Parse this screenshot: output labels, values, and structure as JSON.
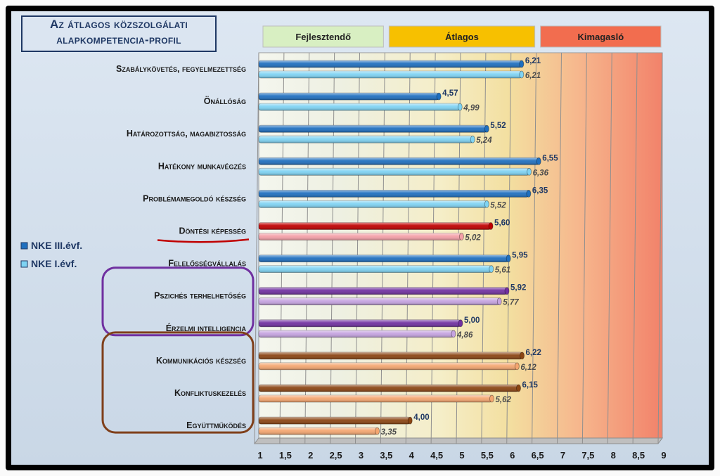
{
  "chart_data": {
    "type": "bar",
    "orientation": "horizontal",
    "title": [
      "Az átlagos közszolgálati",
      "alapkompetencia-profil"
    ],
    "categories": [
      "Szabálykövetés, fegyelmezettség",
      "Önállóság",
      "Határozottság, magabiztosság",
      "Hatékony munkavégzés",
      "Problémamegoldó készség",
      "Döntési képesség",
      "Felelősségvállalás",
      "Pszichés terhelhetőség",
      "Érzelmi intelligencia",
      "Kommunikációs készség",
      "Konfliktuskezelés",
      "Együttműködés"
    ],
    "series": [
      {
        "name": "NKE III.évf.",
        "values": [
          6.21,
          4.57,
          5.52,
          6.55,
          6.35,
          5.6,
          5.95,
          5.92,
          5.0,
          6.22,
          6.15,
          4.0
        ],
        "labels": [
          "6,21",
          "4,57",
          "5,52",
          "6,55",
          "6,35",
          "5,60",
          "5,95",
          "5,92",
          "5,00",
          "6,22",
          "6,15",
          "4,00"
        ]
      },
      {
        "name": "NKE I.évf.",
        "values": [
          6.21,
          4.99,
          5.24,
          6.36,
          5.52,
          5.02,
          5.61,
          5.77,
          4.86,
          6.12,
          5.62,
          3.35
        ],
        "labels": [
          "6,21",
          "4,99",
          "5,24",
          "6,36",
          "5,52",
          "5,02",
          "5,61",
          "5,77",
          "4,86",
          "6,12",
          "5,62",
          "3,35"
        ]
      }
    ],
    "bar_colors": [
      [
        "#1f6fbf",
        "#7fd3f3"
      ],
      [
        "#1f6fbf",
        "#7fd3f3"
      ],
      [
        "#1f6fbf",
        "#7fd3f3"
      ],
      [
        "#1f6fbf",
        "#7fd3f3"
      ],
      [
        "#1f6fbf",
        "#7fd3f3"
      ],
      [
        "#c00000",
        "#f4a0a8"
      ],
      [
        "#1f6fbf",
        "#7fd3f3"
      ],
      [
        "#7030a0",
        "#c5a3e0"
      ],
      [
        "#7030a0",
        "#c5a3e0"
      ],
      [
        "#8b4513",
        "#f4a670"
      ],
      [
        "#8b4513",
        "#f4a670"
      ],
      [
        "#8b4513",
        "#f4a670"
      ]
    ],
    "x_ticks": [
      "1",
      "1,5",
      "2",
      "2,5",
      "3",
      "3,5",
      "4",
      "4,5",
      "5",
      "5,5",
      "6",
      "6,5",
      "7",
      "7,5",
      "8",
      "8,5",
      "9"
    ],
    "xlim": [
      1,
      9
    ],
    "zones": [
      {
        "label": "Fejlesztendő",
        "from": 1,
        "to": 3.5,
        "color": "#d8efc2"
      },
      {
        "label": "Átlagos",
        "from": 3.5,
        "to": 6.5,
        "color": "#f7c000"
      },
      {
        "label": "Kimagasló",
        "from": 6.5,
        "to": 9,
        "color": "#f26d4f"
      }
    ],
    "groups": [
      {
        "from": 7,
        "to": 8,
        "color": "#7030a0"
      },
      {
        "from": 9,
        "to": 11,
        "color": "#7f3f1a"
      }
    ],
    "underlined_category": 5,
    "underline_color": "#c00000",
    "legend_position": "left"
  }
}
